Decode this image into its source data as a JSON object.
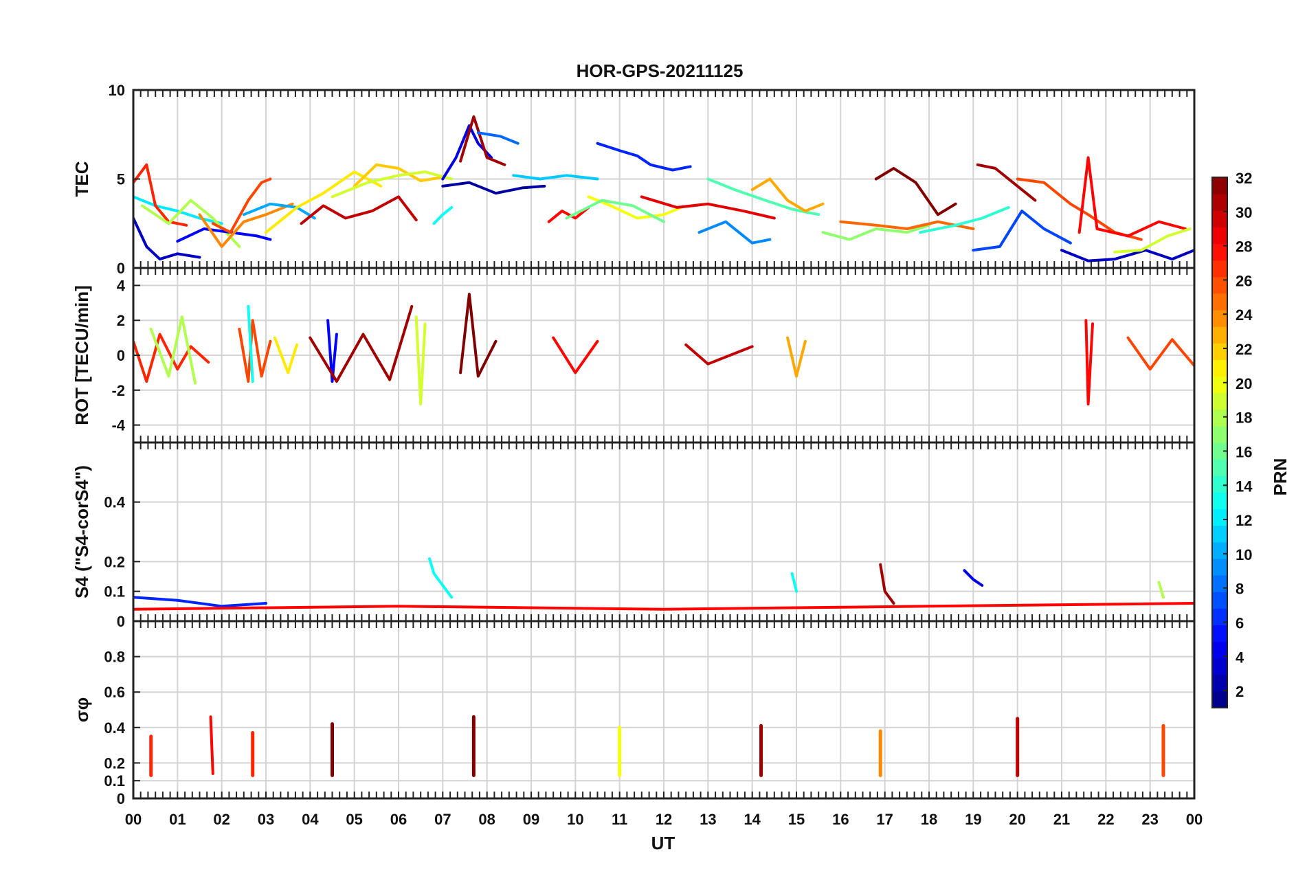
{
  "chart_data": {
    "type": "line",
    "title": "HOR-GPS-20211125",
    "xlabel": "UT",
    "x_ticks": [
      "00",
      "01",
      "02",
      "03",
      "04",
      "05",
      "06",
      "07",
      "08",
      "09",
      "10",
      "11",
      "12",
      "13",
      "14",
      "15",
      "16",
      "17",
      "18",
      "19",
      "20",
      "21",
      "22",
      "23",
      "00"
    ],
    "xlim": [
      0,
      24
    ],
    "grid": true,
    "colorbar": {
      "label": "PRN",
      "min": 1,
      "max": 32,
      "ticks": [
        2,
        4,
        6,
        8,
        10,
        12,
        14,
        16,
        18,
        20,
        22,
        24,
        26,
        28,
        30,
        32
      ],
      "colormap": "jet"
    },
    "panels": [
      {
        "id": "tec",
        "ylabel": "TEC",
        "ylim": [
          0,
          10
        ],
        "yticks": [
          0,
          5,
          10
        ],
        "series": [
          {
            "prn": 3,
            "x": [
              0.0,
              0.3,
              0.6,
              1.0,
              1.5
            ],
            "y": [
              2.8,
              1.2,
              0.5,
              0.8,
              0.6
            ]
          },
          {
            "prn": 12,
            "x": [
              0.0,
              0.5,
              1.0,
              1.5,
              2.0
            ],
            "y": [
              4.0,
              3.5,
              3.2,
              2.8,
              2.5
            ]
          },
          {
            "prn": 27,
            "x": [
              0.0,
              0.3,
              0.5,
              0.8,
              1.2
            ],
            "y": [
              4.8,
              5.8,
              3.5,
              2.6,
              2.4
            ]
          },
          {
            "prn": 18,
            "x": [
              0.2,
              0.8,
              1.3,
              1.8,
              2.4
            ],
            "y": [
              3.5,
              2.5,
              3.8,
              2.8,
              1.2
            ]
          },
          {
            "prn": 5,
            "x": [
              1.0,
              1.6,
              2.2,
              2.8,
              3.1
            ],
            "y": [
              1.5,
              2.2,
              2.0,
              1.8,
              1.6
            ]
          },
          {
            "prn": 26,
            "x": [
              1.8,
              2.2,
              2.6,
              2.9,
              3.1
            ],
            "y": [
              2.5,
              2.0,
              3.8,
              4.8,
              5.0
            ]
          },
          {
            "prn": 24,
            "x": [
              1.5,
              2.0,
              2.5,
              3.0,
              3.6
            ],
            "y": [
              3.0,
              1.2,
              2.6,
              3.0,
              3.6
            ]
          },
          {
            "prn": 10,
            "x": [
              2.5,
              3.1,
              3.7,
              4.1
            ],
            "y": [
              3.0,
              3.6,
              3.4,
              2.8
            ]
          },
          {
            "prn": 21,
            "x": [
              3.0,
              3.7,
              4.3,
              5.0,
              5.6
            ],
            "y": [
              2.0,
              3.4,
              4.2,
              5.4,
              4.6
            ]
          },
          {
            "prn": 30,
            "x": [
              3.8,
              4.3,
              4.8,
              5.4,
              6.0,
              6.4
            ],
            "y": [
              2.5,
              3.5,
              2.8,
              3.2,
              4.0,
              2.7
            ]
          },
          {
            "prn": 22,
            "x": [
              5.0,
              5.5,
              6.0,
              6.5,
              7.0
            ],
            "y": [
              4.6,
              5.8,
              5.6,
              4.9,
              5.1
            ]
          },
          {
            "prn": 19,
            "x": [
              4.5,
              5.3,
              6.0,
              6.6,
              7.2
            ],
            "y": [
              4.0,
              4.8,
              5.2,
              5.4,
              5.0
            ]
          },
          {
            "prn": 13,
            "x": [
              6.8,
              7.0,
              7.2
            ],
            "y": [
              2.5,
              3.0,
              3.4
            ]
          },
          {
            "prn": 4,
            "x": [
              7.0,
              7.3,
              7.6,
              7.8,
              8.1
            ],
            "y": [
              5.0,
              6.2,
              8.0,
              7.0,
              6.2
            ]
          },
          {
            "prn": 31,
            "x": [
              7.4,
              7.7,
              8.0,
              8.4
            ],
            "y": [
              6.0,
              8.5,
              6.2,
              5.8
            ]
          },
          {
            "prn": 8,
            "x": [
              7.8,
              8.3,
              8.7
            ],
            "y": [
              7.6,
              7.4,
              7.0
            ]
          },
          {
            "prn": 2,
            "x": [
              7.0,
              7.6,
              8.2,
              8.8,
              9.3
            ],
            "y": [
              4.6,
              4.8,
              4.2,
              4.5,
              4.6
            ]
          },
          {
            "prn": 11,
            "x": [
              8.6,
              9.2,
              9.8,
              10.5
            ],
            "y": [
              5.2,
              5.0,
              5.2,
              5.0
            ]
          },
          {
            "prn": 28,
            "x": [
              9.4,
              9.7,
              10.0,
              10.3
            ],
            "y": [
              2.6,
              3.2,
              2.8,
              3.4
            ]
          },
          {
            "prn": 6,
            "x": [
              10.5,
              11.0,
              11.4,
              11.7,
              12.2,
              12.6
            ],
            "y": [
              7.0,
              6.6,
              6.3,
              5.8,
              5.5,
              5.7
            ]
          },
          {
            "prn": 20,
            "x": [
              10.3,
              10.8,
              11.4,
              12.0,
              12.4
            ],
            "y": [
              4.0,
              3.5,
              2.8,
              3.0,
              3.4
            ]
          },
          {
            "prn": 16,
            "x": [
              9.8,
              10.6,
              11.3,
              12.0
            ],
            "y": [
              2.8,
              3.8,
              3.5,
              2.6
            ]
          },
          {
            "prn": 29,
            "x": [
              11.5,
              12.3,
              13.0,
              13.8,
              14.5
            ],
            "y": [
              4.0,
              3.4,
              3.6,
              3.2,
              2.8
            ]
          },
          {
            "prn": 9,
            "x": [
              12.8,
              13.4,
              14.0,
              14.4
            ],
            "y": [
              2.0,
              2.6,
              1.4,
              1.6
            ]
          },
          {
            "prn": 15,
            "x": [
              13.0,
              13.6,
              14.3,
              14.9,
              15.5
            ],
            "y": [
              5.0,
              4.4,
              3.8,
              3.3,
              3.0
            ]
          },
          {
            "prn": 23,
            "x": [
              14.0,
              14.4,
              14.8,
              15.2,
              15.6
            ],
            "y": [
              4.4,
              5.0,
              3.8,
              3.2,
              3.6
            ]
          },
          {
            "prn": 17,
            "x": [
              15.6,
              16.2,
              16.8,
              17.5,
              18.0
            ],
            "y": [
              2.0,
              1.6,
              2.2,
              2.0,
              2.4
            ]
          },
          {
            "prn": 32,
            "x": [
              16.8,
              17.2,
              17.7,
              18.2,
              18.6
            ],
            "y": [
              5.0,
              5.6,
              4.8,
              3.0,
              3.6
            ]
          },
          {
            "prn": 25,
            "x": [
              16.0,
              16.8,
              17.5,
              18.2,
              19.0
            ],
            "y": [
              2.6,
              2.4,
              2.2,
              2.6,
              2.2
            ]
          },
          {
            "prn": 14,
            "x": [
              17.8,
              18.6,
              19.2,
              19.8
            ],
            "y": [
              2.0,
              2.4,
              2.8,
              3.4
            ]
          },
          {
            "prn": 31,
            "x": [
              19.1,
              19.5,
              20.0,
              20.4
            ],
            "y": [
              5.8,
              5.6,
              4.6,
              3.8
            ]
          },
          {
            "prn": 7,
            "x": [
              19.0,
              19.6,
              20.1,
              20.6,
              21.2
            ],
            "y": [
              1.0,
              1.2,
              3.2,
              2.2,
              1.4
            ]
          },
          {
            "prn": 26,
            "x": [
              20.0,
              20.6,
              21.2,
              21.6,
              22.2,
              22.8
            ],
            "y": [
              5.0,
              4.8,
              3.6,
              3.0,
              2.0,
              1.6
            ]
          },
          {
            "prn": 28,
            "x": [
              21.4,
              21.6,
              21.8,
              22.5,
              23.2,
              23.8
            ],
            "y": [
              2.0,
              6.2,
              2.2,
              1.8,
              2.6,
              2.2
            ]
          },
          {
            "prn": 3,
            "x": [
              21.0,
              21.6,
              22.2,
              22.9,
              23.5,
              24.0
            ],
            "y": [
              1.0,
              0.4,
              0.5,
              1.0,
              0.5,
              1.0
            ]
          },
          {
            "prn": 19,
            "x": [
              22.2,
              22.8,
              23.4,
              23.9
            ],
            "y": [
              0.9,
              1.0,
              1.8,
              2.2
            ]
          }
        ]
      },
      {
        "id": "rot",
        "ylabel": "ROT [TECU/min]",
        "ylim": [
          -5,
          5
        ],
        "yticks": [
          -4,
          -2,
          0,
          2,
          4
        ],
        "series": [
          {
            "prn": 27,
            "x": [
              0.0,
              0.3,
              0.6,
              1.0,
              1.3,
              1.7
            ],
            "y": [
              0.8,
              -1.5,
              1.2,
              -0.8,
              0.5,
              -0.4
            ]
          },
          {
            "prn": 18,
            "x": [
              0.4,
              0.8,
              1.1,
              1.4
            ],
            "y": [
              1.5,
              -1.2,
              2.2,
              -1.6
            ]
          },
          {
            "prn": 26,
            "x": [
              2.4,
              2.6,
              2.7,
              2.9,
              3.1
            ],
            "y": [
              1.5,
              -1.5,
              2.0,
              -1.2,
              0.8
            ]
          },
          {
            "prn": 13,
            "x": [
              2.6,
              2.7
            ],
            "y": [
              2.8,
              -1.5
            ]
          },
          {
            "prn": 21,
            "x": [
              3.2,
              3.5,
              3.7
            ],
            "y": [
              1.0,
              -1.0,
              0.6
            ]
          },
          {
            "prn": 5,
            "x": [
              4.4,
              4.5,
              4.6
            ],
            "y": [
              2.0,
              -1.5,
              1.2
            ]
          },
          {
            "prn": 31,
            "x": [
              4.0,
              4.6,
              5.2,
              5.8,
              6.3
            ],
            "y": [
              1.0,
              -1.5,
              1.2,
              -1.4,
              2.8
            ]
          },
          {
            "prn": 32,
            "x": [
              7.4,
              7.6,
              7.8,
              8.2
            ],
            "y": [
              -1.0,
              3.5,
              -1.2,
              0.8
            ]
          },
          {
            "prn": 19,
            "x": [
              6.4,
              6.5,
              6.6
            ],
            "y": [
              2.2,
              -2.8,
              1.8
            ]
          },
          {
            "prn": 28,
            "x": [
              9.5,
              10.0,
              10.5
            ],
            "y": [
              1.0,
              -1.0,
              0.8
            ]
          },
          {
            "prn": 30,
            "x": [
              12.5,
              13.0,
              14.0
            ],
            "y": [
              0.6,
              -0.5,
              0.5
            ]
          },
          {
            "prn": 23,
            "x": [
              14.8,
              15.0,
              15.2
            ],
            "y": [
              1.0,
              -1.2,
              0.8
            ]
          },
          {
            "prn": 28,
            "x": [
              21.55,
              21.6,
              21.7
            ],
            "y": [
              2.0,
              -2.8,
              1.8
            ]
          },
          {
            "prn": 26,
            "x": [
              22.5,
              23.0,
              23.5,
              24.0
            ],
            "y": [
              1.0,
              -0.8,
              0.9,
              -0.6
            ]
          }
        ]
      },
      {
        "id": "s4",
        "ylabel": "S4 (\"S4-corS4\")",
        "ylim": [
          0,
          0.6
        ],
        "yticks": [
          0,
          0.1,
          0.2,
          0.4
        ],
        "ytick_labels": [
          "0",
          "0.1",
          "0.2",
          "0.4"
        ],
        "series": [
          {
            "prn": 13,
            "x": [
              6.7,
              6.8,
              7.0,
              7.2
            ],
            "y": [
              0.21,
              0.16,
              0.12,
              0.08
            ]
          },
          {
            "prn": 31,
            "x": [
              16.9,
              17.0,
              17.2
            ],
            "y": [
              0.19,
              0.1,
              0.06
            ]
          },
          {
            "prn": 4,
            "x": [
              18.8,
              19.0,
              19.2
            ],
            "y": [
              0.17,
              0.14,
              0.12
            ]
          },
          {
            "prn": 13,
            "x": [
              14.9,
              15.0
            ],
            "y": [
              0.16,
              0.1
            ]
          },
          {
            "prn": 18,
            "x": [
              23.2,
              23.3
            ],
            "y": [
              0.13,
              0.08
            ]
          },
          {
            "prn": 6,
            "x": [
              0.0,
              1.0,
              2.0,
              3.0
            ],
            "y": [
              0.08,
              0.07,
              0.05,
              0.06
            ]
          },
          {
            "prn": 28,
            "x": [
              0.0,
              6.0,
              12.0,
              18.0,
              24.0
            ],
            "y": [
              0.04,
              0.05,
              0.04,
              0.05,
              0.06
            ]
          }
        ]
      },
      {
        "id": "sigma_phi",
        "ylabel": "σφ",
        "ylim": [
          0,
          1
        ],
        "yticks": [
          0,
          0.1,
          0.2,
          0.4,
          0.6,
          0.8
        ],
        "ytick_labels": [
          "0",
          "0.1",
          "0.2",
          "0.4",
          "0.6",
          "0.8"
        ],
        "series": [
          {
            "prn": 28,
            "x": [
              1.75,
              1.8
            ],
            "y": [
              0.46,
              0.14
            ]
          },
          {
            "prn": 27,
            "x": [
              0.4
            ],
            "y": [
              0.35
            ]
          },
          {
            "prn": 27,
            "x": [
              2.7
            ],
            "y": [
              0.37
            ]
          },
          {
            "prn": 32,
            "x": [
              4.5
            ],
            "y": [
              0.42
            ]
          },
          {
            "prn": 32,
            "x": [
              7.7
            ],
            "y": [
              0.46
            ]
          },
          {
            "prn": 20,
            "x": [
              11.0
            ],
            "y": [
              0.4
            ]
          },
          {
            "prn": 31,
            "x": [
              14.2
            ],
            "y": [
              0.41
            ]
          },
          {
            "prn": 24,
            "x": [
              16.9
            ],
            "y": [
              0.38
            ]
          },
          {
            "prn": 30,
            "x": [
              20.0
            ],
            "y": [
              0.45
            ]
          },
          {
            "prn": 26,
            "x": [
              23.3
            ],
            "y": [
              0.41
            ]
          }
        ]
      }
    ]
  }
}
